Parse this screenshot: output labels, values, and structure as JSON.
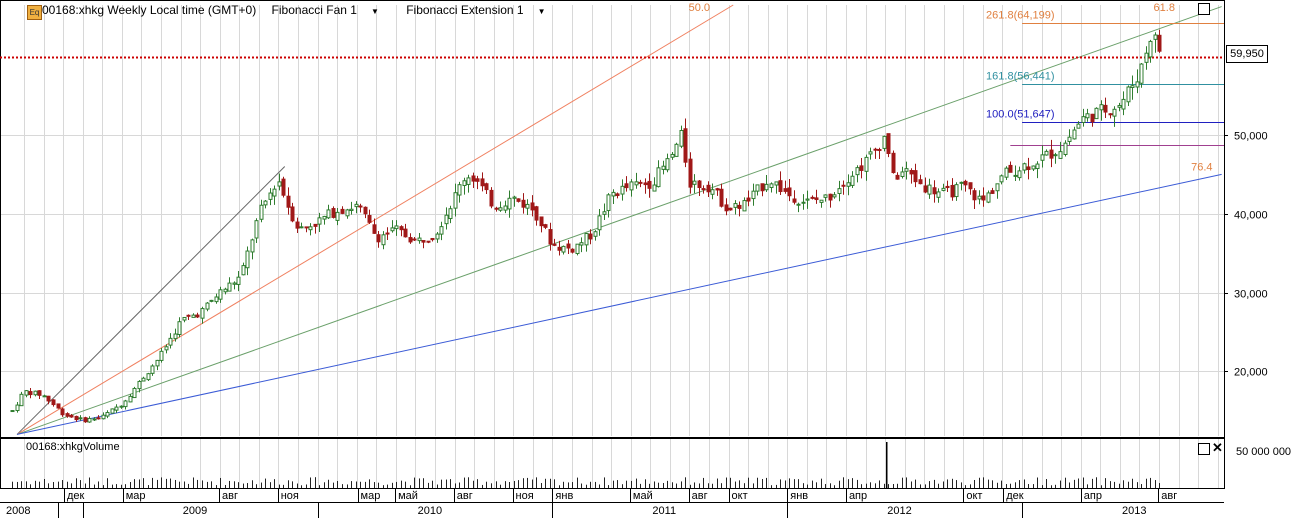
{
  "header": {
    "symbol_label": "00168:xhkg Weekly Local time (GMT+0)",
    "indicator_1": "Fibonacci Fan 1",
    "indicator_2": "Fibonacci Extension 1"
  },
  "volume_panel": {
    "title": "00168:xhkgVolume",
    "axis_label": "50 000 000"
  },
  "current_price_label": "59,950",
  "colors": {
    "up": "#2f7d2f",
    "down": "#a01818",
    "fan_50": "#f08060",
    "fan_61": "#6aa06a",
    "fan_76": "#3b5bd6",
    "fan_base": "#666666",
    "ext_261": "#e08040",
    "ext_161": "#3090a0",
    "ext_100": "#2020c0",
    "ext_0": "#a04090",
    "current": "#cc0000"
  },
  "chart_data": {
    "type": "candlestick",
    "y_axis": {
      "ticks": [
        20000,
        30000,
        40000,
        50000
      ],
      "tick_labels": [
        "20,000",
        "30,000",
        "40,000",
        "50,000"
      ],
      "ylim": [
        11800,
        66500
      ]
    },
    "x_axis": {
      "months": [
        {
          "t": 2008.92,
          "label": "дек"
        },
        {
          "t": 2009.17,
          "label": "мар"
        },
        {
          "t": 2009.58,
          "label": "авг"
        },
        {
          "t": 2009.83,
          "label": "ноя"
        },
        {
          "t": 2010.17,
          "label": "мар"
        },
        {
          "t": 2010.33,
          "label": "май"
        },
        {
          "t": 2010.58,
          "label": "авг"
        },
        {
          "t": 2010.83,
          "label": "ноя"
        },
        {
          "t": 2011.0,
          "label": "янв"
        },
        {
          "t": 2011.33,
          "label": "май"
        },
        {
          "t": 2011.58,
          "label": "авг"
        },
        {
          "t": 2011.75,
          "label": "окт"
        },
        {
          "t": 2012.0,
          "label": "янв"
        },
        {
          "t": 2012.25,
          "label": "апр"
        },
        {
          "t": 2012.75,
          "label": "окт"
        },
        {
          "t": 2012.92,
          "label": "дек"
        },
        {
          "t": 2013.25,
          "label": "апр"
        },
        {
          "t": 2013.58,
          "label": "авг"
        }
      ],
      "years": [
        {
          "t": 2008.5,
          "label": "2008"
        },
        {
          "t": 2009.0,
          "label": "2009"
        },
        {
          "t": 2010.0,
          "label": "2010"
        },
        {
          "t": 2011.0,
          "label": "2011"
        },
        {
          "t": 2012.0,
          "label": "2012"
        },
        {
          "t": 2013.0,
          "label": "2013"
        }
      ],
      "xlim": [
        2008.69,
        2013.86
      ]
    },
    "anchors": [
      {
        "t": 2008.7,
        "price": 15000
      },
      {
        "t": 2008.75,
        "price": 17500
      },
      {
        "t": 2008.83,
        "price": 17000
      },
      {
        "t": 2008.92,
        "price": 14500
      },
      {
        "t": 2009.0,
        "price": 13800
      },
      {
        "t": 2009.08,
        "price": 14200
      },
      {
        "t": 2009.17,
        "price": 16000
      },
      {
        "t": 2009.25,
        "price": 19000
      },
      {
        "t": 2009.33,
        "price": 22000
      },
      {
        "t": 2009.42,
        "price": 26500
      },
      {
        "t": 2009.5,
        "price": 27500
      },
      {
        "t": 2009.58,
        "price": 30000
      },
      {
        "t": 2009.67,
        "price": 32000
      },
      {
        "t": 2009.75,
        "price": 40000
      },
      {
        "t": 2009.83,
        "price": 44500
      },
      {
        "t": 2009.88,
        "price": 40500
      },
      {
        "t": 2009.92,
        "price": 38000
      },
      {
        "t": 2010.0,
        "price": 39000
      },
      {
        "t": 2010.08,
        "price": 40500
      },
      {
        "t": 2010.17,
        "price": 41000
      },
      {
        "t": 2010.25,
        "price": 37000
      },
      {
        "t": 2010.33,
        "price": 38000
      },
      {
        "t": 2010.42,
        "price": 36500
      },
      {
        "t": 2010.5,
        "price": 37500
      },
      {
        "t": 2010.58,
        "price": 42000
      },
      {
        "t": 2010.63,
        "price": 45000
      },
      {
        "t": 2010.67,
        "price": 44500
      },
      {
        "t": 2010.75,
        "price": 41000
      },
      {
        "t": 2010.83,
        "price": 42000
      },
      {
        "t": 2010.92,
        "price": 40500
      },
      {
        "t": 2011.0,
        "price": 36000
      },
      {
        "t": 2011.08,
        "price": 35500
      },
      {
        "t": 2011.17,
        "price": 37500
      },
      {
        "t": 2011.25,
        "price": 42500
      },
      {
        "t": 2011.33,
        "price": 43500
      },
      {
        "t": 2011.42,
        "price": 44000
      },
      {
        "t": 2011.5,
        "price": 47000
      },
      {
        "t": 2011.55,
        "price": 50000
      },
      {
        "t": 2011.58,
        "price": 44000
      },
      {
        "t": 2011.67,
        "price": 43500
      },
      {
        "t": 2011.75,
        "price": 40500
      },
      {
        "t": 2011.83,
        "price": 41500
      },
      {
        "t": 2011.92,
        "price": 44500
      },
      {
        "t": 2012.0,
        "price": 42500
      },
      {
        "t": 2012.08,
        "price": 41500
      },
      {
        "t": 2012.17,
        "price": 42000
      },
      {
        "t": 2012.25,
        "price": 44500
      },
      {
        "t": 2012.33,
        "price": 46500
      },
      {
        "t": 2012.42,
        "price": 50000
      },
      {
        "t": 2012.45,
        "price": 44500
      },
      {
        "t": 2012.5,
        "price": 45500
      },
      {
        "t": 2012.58,
        "price": 43500
      },
      {
        "t": 2012.67,
        "price": 42500
      },
      {
        "t": 2012.75,
        "price": 43500
      },
      {
        "t": 2012.83,
        "price": 41500
      },
      {
        "t": 2012.92,
        "price": 45000
      },
      {
        "t": 2013.0,
        "price": 46000
      },
      {
        "t": 2013.08,
        "price": 47000
      },
      {
        "t": 2013.17,
        "price": 48500
      },
      {
        "t": 2013.25,
        "price": 52000
      },
      {
        "t": 2013.33,
        "price": 53000
      },
      {
        "t": 2013.42,
        "price": 54000
      },
      {
        "t": 2013.5,
        "price": 58000
      },
      {
        "t": 2013.55,
        "price": 63000
      },
      {
        "t": 2013.6,
        "price": 60000
      }
    ],
    "fan": {
      "origin": {
        "t": 2008.72,
        "price": 12000
      },
      "rays": [
        {
          "label": "",
          "to": {
            "t": 2009.86,
            "price": 46000
          },
          "color_key": "fan_base"
        },
        {
          "label": "50.0",
          "to": {
            "t": 2011.77,
            "price": 66500
          },
          "color_key": "fan_50"
        },
        {
          "label": "61.8",
          "to": {
            "t": 2013.85,
            "price": 66300
          },
          "color_key": "fan_61"
        },
        {
          "label": "76.4",
          "to": {
            "t": 2013.85,
            "price": 45000
          },
          "color_key": "fan_76"
        }
      ]
    },
    "extension": [
      {
        "label": "261.8(64,199)",
        "price": 64199,
        "t_start": 2013.0,
        "color_key": "ext_261"
      },
      {
        "label": "161.8(56,441)",
        "price": 56441,
        "t_start": 2013.0,
        "color_key": "ext_161"
      },
      {
        "label": "100.0(51,647)",
        "price": 51647,
        "t_start": 2013.0,
        "color_key": "ext_100"
      },
      {
        "label": "",
        "price": 48700,
        "t_start": 2012.95,
        "color_key": "ext_0"
      }
    ],
    "current_price": 59950,
    "volume": {
      "spike": {
        "t": 2012.42,
        "value": 52000000
      },
      "base_range": [
        3000000,
        12000000
      ]
    }
  }
}
